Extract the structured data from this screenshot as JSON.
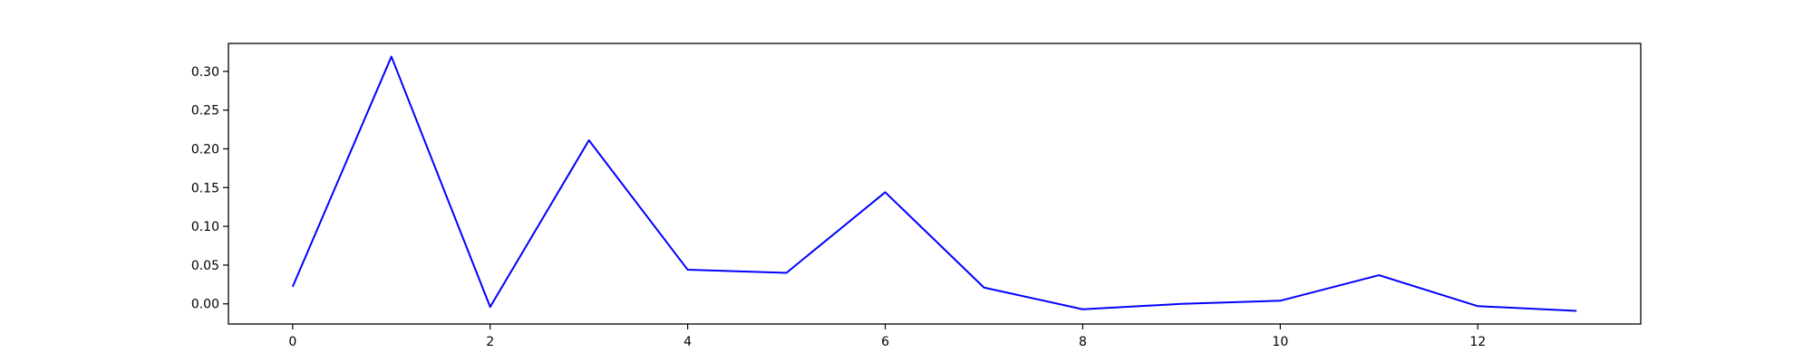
{
  "chart_data": {
    "type": "line",
    "title": "",
    "xlabel": "",
    "ylabel": "",
    "xlim": [
      -0.65,
      13.65
    ],
    "ylim": [
      -0.026,
      0.336
    ],
    "grid": false,
    "legend": "none",
    "x_ticks": [
      0,
      2,
      4,
      6,
      8,
      10,
      12
    ],
    "y_ticks": [
      0.0,
      0.05,
      0.1,
      0.15,
      0.2,
      0.25,
      0.3
    ],
    "x": [
      0,
      1,
      2,
      3,
      4,
      5,
      6,
      7,
      8,
      9,
      10,
      11,
      12,
      13
    ],
    "series": [
      {
        "color": "#0000ff",
        "values": [
          0.022,
          0.319,
          -0.004,
          0.211,
          0.044,
          0.04,
          0.144,
          0.021,
          -0.007,
          0.0,
          0.004,
          0.037,
          -0.003,
          -0.009
        ]
      }
    ]
  }
}
